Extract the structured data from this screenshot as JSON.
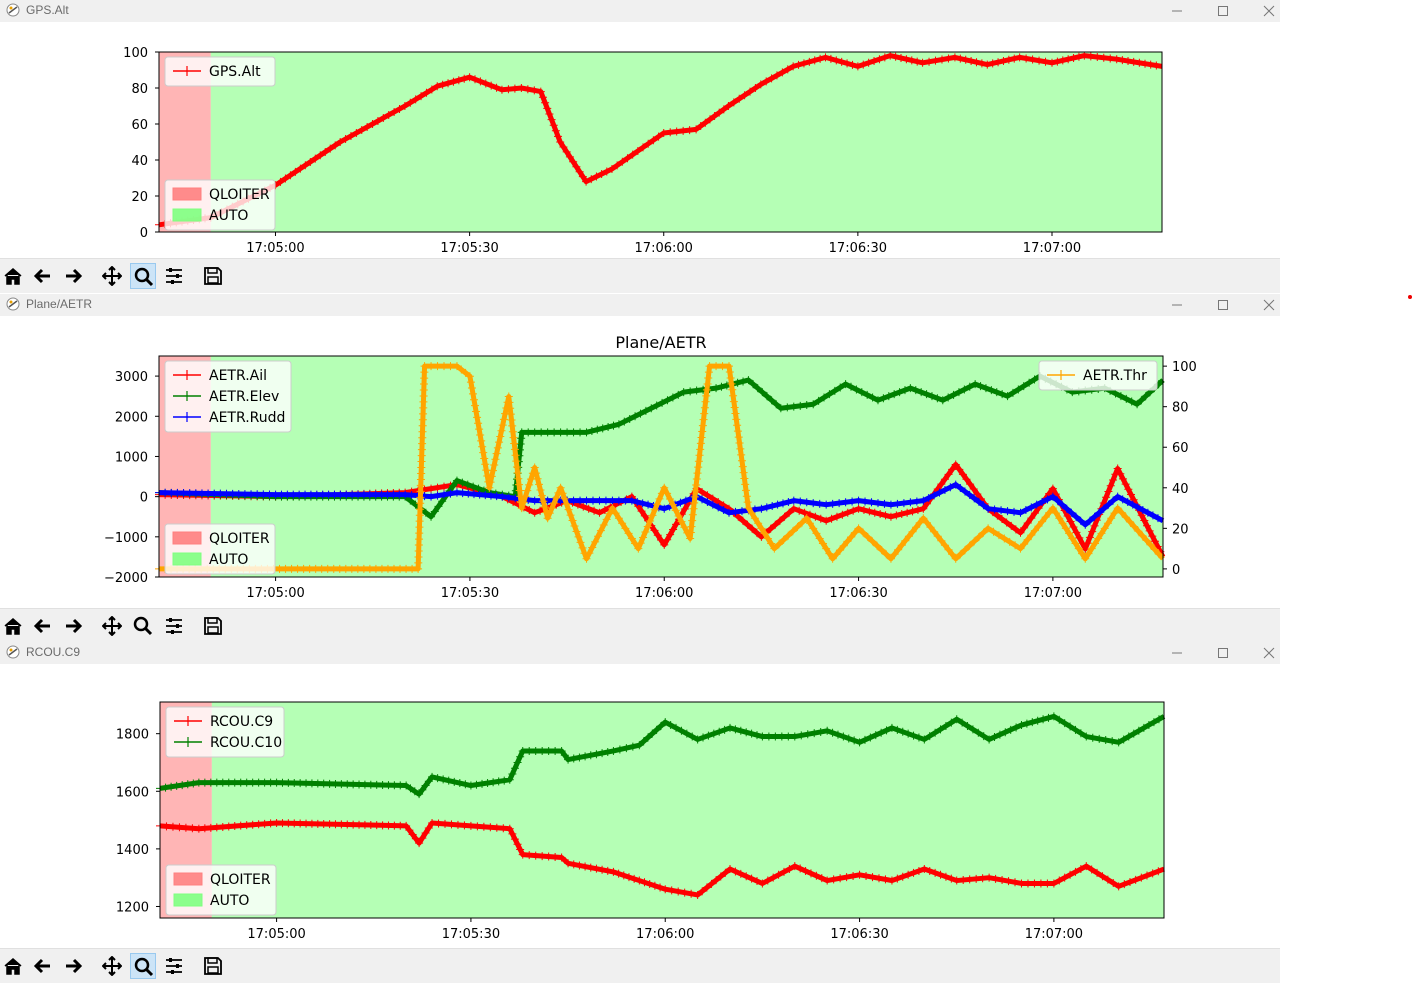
{
  "windows": [
    {
      "title": "GPS.Alt",
      "buttons": [
        "minimize-icon",
        "maximize-icon",
        "close-icon"
      ]
    },
    {
      "title": "Plane/AETR",
      "buttons": [
        "minimize-icon",
        "maximize-icon",
        "close-icon"
      ]
    },
    {
      "title": "RCOU.C9",
      "buttons": [
        "minimize-icon",
        "maximize-icon",
        "close-icon"
      ]
    }
  ],
  "toolbar_icons": [
    "home-icon",
    "back-icon",
    "forward-icon",
    "pan-icon",
    "zoom-icon",
    "configure-subplots-icon",
    "save-icon"
  ],
  "colors": {
    "qloiter": "#ff7f7f",
    "auto": "#7fff7f",
    "red": "#ff0000",
    "green": "#008000",
    "blue": "#0000ff",
    "orange": "#ffa500"
  },
  "chart_data": [
    {
      "type": "line",
      "title": "",
      "x_ticks": [
        "17:05:00",
        "17:05:30",
        "17:06:00",
        "17:06:30",
        "17:07:00"
      ],
      "x_range": [
        "17:04:42",
        "17:07:17"
      ],
      "ylim": [
        0,
        100
      ],
      "y_ticks": [
        0,
        20,
        40,
        60,
        80,
        100
      ],
      "mode_bands": [
        {
          "name": "QLOITER",
          "from": "17:04:42",
          "to": "17:04:50"
        },
        {
          "name": "AUTO",
          "from": "17:04:50",
          "to": "17:07:17"
        }
      ],
      "series": [
        {
          "name": "GPS.Alt",
          "color": "#ff0000",
          "x": [
            "17:04:42",
            "17:04:50",
            "17:05:00",
            "17:05:10",
            "17:05:20",
            "17:05:25",
            "17:05:30",
            "17:05:35",
            "17:05:38",
            "17:05:41",
            "17:05:44",
            "17:05:48",
            "17:05:52",
            "17:05:56",
            "17:06:00",
            "17:06:05",
            "17:06:10",
            "17:06:15",
            "17:06:20",
            "17:06:25",
            "17:06:30",
            "17:06:35",
            "17:06:40",
            "17:06:45",
            "17:06:50",
            "17:06:55",
            "17:07:00",
            "17:07:05",
            "17:07:10",
            "17:07:17"
          ],
          "y": [
            4,
            8,
            26,
            50,
            70,
            81,
            86,
            79,
            80,
            78,
            50,
            28,
            35,
            45,
            55,
            57,
            70,
            82,
            92,
            97,
            92,
            98,
            94,
            97,
            93,
            97,
            94,
            98,
            96,
            92
          ]
        }
      ],
      "legend": {
        "series_position": "upper-left",
        "modes_position": "lower-left"
      }
    },
    {
      "type": "line",
      "title": "Plane/AETR",
      "x_ticks": [
        "17:05:00",
        "17:05:30",
        "17:06:00",
        "17:06:30",
        "17:07:00"
      ],
      "x_range": [
        "17:04:42",
        "17:07:17"
      ],
      "ylim": [
        -2000,
        3500
      ],
      "y_ticks": [
        -2000,
        -1000,
        0,
        1000,
        2000,
        3000
      ],
      "y2lim": [
        -4,
        105
      ],
      "y2_ticks": [
        0,
        20,
        40,
        60,
        80,
        100
      ],
      "mode_bands": [
        {
          "name": "QLOITER",
          "from": "17:04:42",
          "to": "17:04:50"
        },
        {
          "name": "AUTO",
          "from": "17:04:50",
          "to": "17:07:17"
        }
      ],
      "series": [
        {
          "name": "AETR.Ail",
          "color": "#ff0000",
          "axis": "left",
          "x": [
            "17:04:42",
            "17:05:00",
            "17:05:20",
            "17:05:24",
            "17:05:28",
            "17:05:35",
            "17:05:40",
            "17:05:45",
            "17:05:50",
            "17:05:55",
            "17:06:00",
            "17:06:05",
            "17:06:10",
            "17:06:15",
            "17:06:20",
            "17:06:25",
            "17:06:30",
            "17:06:35",
            "17:06:40",
            "17:06:45",
            "17:06:50",
            "17:06:55",
            "17:07:00",
            "17:07:05",
            "17:07:10",
            "17:07:17"
          ],
          "y": [
            50,
            0,
            100,
            200,
            300,
            0,
            -400,
            -100,
            -400,
            0,
            -1200,
            200,
            -300,
            -1000,
            -300,
            -600,
            -300,
            -500,
            -300,
            800,
            -300,
            -900,
            200,
            -1300,
            700,
            -1500
          ]
        },
        {
          "name": "AETR.Elev",
          "color": "#008000",
          "axis": "left",
          "x": [
            "17:04:42",
            "17:05:00",
            "17:05:20",
            "17:05:24",
            "17:05:28",
            "17:05:33",
            "17:05:37",
            "17:05:38",
            "17:05:43",
            "17:05:48",
            "17:05:53",
            "17:05:58",
            "17:06:03",
            "17:06:08",
            "17:06:13",
            "17:06:18",
            "17:06:23",
            "17:06:28",
            "17:06:33",
            "17:06:38",
            "17:06:43",
            "17:06:48",
            "17:06:53",
            "17:06:58",
            "17:07:03",
            "17:07:08",
            "17:07:13",
            "17:07:17"
          ],
          "y": [
            100,
            0,
            0,
            -500,
            400,
            100,
            0,
            1600,
            1600,
            1600,
            1800,
            2200,
            2600,
            2700,
            2900,
            2200,
            2300,
            2800,
            2400,
            2700,
            2400,
            2800,
            2500,
            3000,
            2600,
            2700,
            2300,
            2900
          ]
        },
        {
          "name": "AETR.Rudd",
          "color": "#0000ff",
          "axis": "left",
          "x": [
            "17:04:42",
            "17:05:00",
            "17:05:20",
            "17:05:24",
            "17:05:28",
            "17:05:35",
            "17:05:40",
            "17:05:45",
            "17:05:50",
            "17:05:55",
            "17:06:00",
            "17:06:05",
            "17:06:10",
            "17:06:15",
            "17:06:20",
            "17:06:25",
            "17:06:30",
            "17:06:35",
            "17:06:40",
            "17:06:45",
            "17:06:50",
            "17:06:55",
            "17:07:00",
            "17:07:05",
            "17:07:10",
            "17:07:17"
          ],
          "y": [
            100,
            50,
            50,
            0,
            100,
            0,
            -100,
            -100,
            -100,
            -100,
            -300,
            0,
            -400,
            -300,
            -100,
            -200,
            -100,
            -200,
            -100,
            300,
            -300,
            -400,
            0,
            -700,
            0,
            -600
          ]
        },
        {
          "name": "AETR.Thr",
          "color": "#ffa500",
          "axis": "right",
          "x": [
            "17:04:42",
            "17:05:22",
            "17:05:23",
            "17:05:28",
            "17:05:30",
            "17:05:33",
            "17:05:36",
            "17:05:38",
            "17:05:40",
            "17:05:42",
            "17:05:44",
            "17:05:48",
            "17:05:52",
            "17:05:56",
            "17:06:00",
            "17:06:04",
            "17:06:07",
            "17:06:10",
            "17:06:13",
            "17:06:17",
            "17:06:22",
            "17:06:26",
            "17:06:30",
            "17:06:35",
            "17:06:40",
            "17:06:45",
            "17:06:50",
            "17:06:55",
            "17:07:00",
            "17:07:05",
            "17:07:10",
            "17:07:17"
          ],
          "y": [
            0,
            0,
            100,
            100,
            95,
            40,
            85,
            30,
            50,
            25,
            40,
            5,
            30,
            10,
            40,
            15,
            100,
            100,
            30,
            10,
            25,
            5,
            20,
            5,
            25,
            5,
            20,
            10,
            30,
            5,
            30,
            5
          ]
        }
      ],
      "legend": {
        "series_position": "upper-left",
        "right_series_position": "upper-right",
        "modes_position": "lower-left"
      }
    },
    {
      "type": "line",
      "title": "",
      "x_ticks": [
        "17:05:00",
        "17:05:30",
        "17:06:00",
        "17:06:30",
        "17:07:00"
      ],
      "x_range": [
        "17:04:42",
        "17:07:17"
      ],
      "ylim": [
        1160,
        1910
      ],
      "y_ticks": [
        1200,
        1400,
        1600,
        1800
      ],
      "mode_bands": [
        {
          "name": "QLOITER",
          "from": "17:04:42",
          "to": "17:04:50"
        },
        {
          "name": "AUTO",
          "from": "17:04:50",
          "to": "17:07:17"
        }
      ],
      "series": [
        {
          "name": "RCOU.C9",
          "color": "#ff0000",
          "x": [
            "17:04:42",
            "17:04:48",
            "17:05:00",
            "17:05:20",
            "17:05:22",
            "17:05:24",
            "17:05:30",
            "17:05:36",
            "17:05:38",
            "17:05:44",
            "17:05:45",
            "17:05:52",
            "17:05:56",
            "17:06:00",
            "17:06:05",
            "17:06:10",
            "17:06:15",
            "17:06:20",
            "17:06:25",
            "17:06:30",
            "17:06:35",
            "17:06:40",
            "17:06:45",
            "17:06:50",
            "17:06:55",
            "17:07:00",
            "17:07:05",
            "17:07:10",
            "17:07:17"
          ],
          "y": [
            1480,
            1470,
            1490,
            1480,
            1420,
            1490,
            1480,
            1470,
            1380,
            1370,
            1350,
            1320,
            1290,
            1260,
            1240,
            1330,
            1280,
            1340,
            1290,
            1310,
            1290,
            1330,
            1290,
            1300,
            1280,
            1280,
            1340,
            1270,
            1330
          ]
        },
        {
          "name": "RCOU.C10",
          "color": "#008000",
          "x": [
            "17:04:42",
            "17:04:48",
            "17:05:00",
            "17:05:20",
            "17:05:22",
            "17:05:24",
            "17:05:30",
            "17:05:36",
            "17:05:38",
            "17:05:44",
            "17:05:45",
            "17:05:52",
            "17:05:56",
            "17:06:00",
            "17:06:05",
            "17:06:10",
            "17:06:15",
            "17:06:20",
            "17:06:25",
            "17:06:30",
            "17:06:35",
            "17:06:40",
            "17:06:45",
            "17:06:50",
            "17:06:55",
            "17:07:00",
            "17:07:05",
            "17:07:10",
            "17:07:17"
          ],
          "y": [
            1610,
            1630,
            1630,
            1620,
            1590,
            1650,
            1620,
            1640,
            1740,
            1740,
            1710,
            1740,
            1760,
            1840,
            1780,
            1820,
            1790,
            1790,
            1810,
            1770,
            1820,
            1780,
            1850,
            1780,
            1830,
            1860,
            1790,
            1770,
            1860
          ]
        }
      ],
      "legend": {
        "series_position": "upper-left",
        "modes_position": "lower-left"
      }
    }
  ]
}
